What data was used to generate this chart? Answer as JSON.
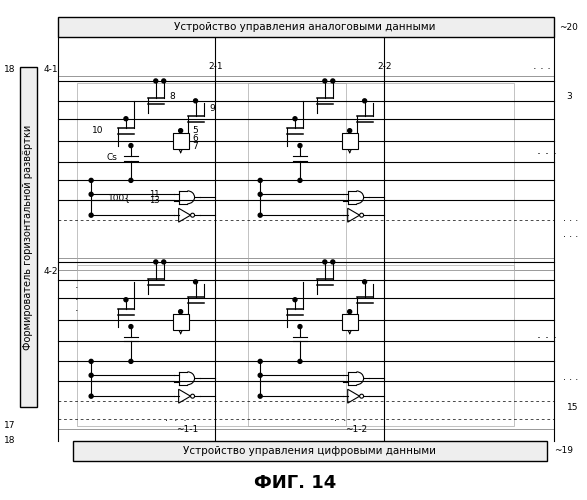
{
  "title": "ФИГ. 14",
  "top_label": "Устройство управления аналоговыми данными",
  "bottom_label": "Устройство управления цифровыми данными",
  "left_label": "Формирователь горизонтальной развёртки",
  "label_20": "20",
  "label_19": "19",
  "label_18_top": "18",
  "label_18_bot": "18",
  "label_4_1": "4-1",
  "label_4_2": "4-2",
  "label_2_1": "2-1",
  "label_2_2": "2-2",
  "label_1_1": "1-1",
  "label_1_2": "1-2",
  "label_3": "3",
  "label_15": "15",
  "label_17": "17",
  "label_8": "8",
  "label_9": "9",
  "label_10": "10",
  "label_Cs": "Cs",
  "label_5": "5",
  "label_6": "6",
  "label_7": "7",
  "label_100": "100",
  "label_11": "11",
  "label_13": "13",
  "bg_color": "#ffffff",
  "line_color": "#000000",
  "figsize": [
    5.87,
    5.0
  ],
  "dpi": 100
}
